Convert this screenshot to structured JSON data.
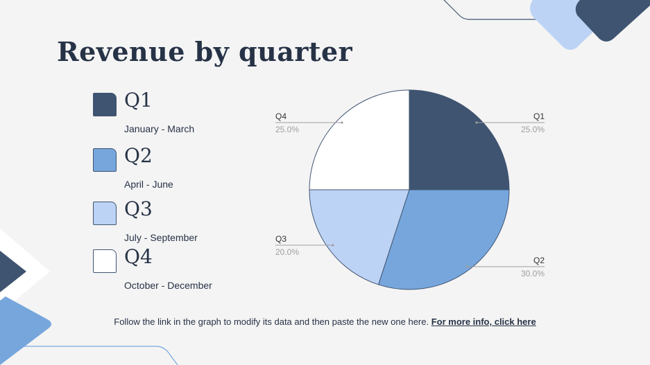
{
  "title": "Revenue by quarter",
  "legend": [
    {
      "label": "Q1",
      "range": "January - March",
      "color": "#3f5470"
    },
    {
      "label": "Q2",
      "range": "April - June",
      "color": "#76a6dc"
    },
    {
      "label": "Q3",
      "range": "July - September",
      "color": "#bdd3f5"
    },
    {
      "label": "Q4",
      "range": "October - December",
      "color": "#ffffff"
    }
  ],
  "chart_data": {
    "type": "pie",
    "categories": [
      "Q1",
      "Q2",
      "Q3",
      "Q4"
    ],
    "values": [
      25.0,
      30.0,
      20.0,
      25.0
    ],
    "value_labels": [
      "25.0%",
      "30.0%",
      "20.0%",
      "25.0%"
    ],
    "colors": [
      "#3f5470",
      "#76a6dc",
      "#bdd3f5",
      "#ffffff"
    ]
  },
  "footer": {
    "text": "Follow the link in the graph to modify its data and then paste the new one here. ",
    "link": "For more info, click here"
  },
  "colors": {
    "dark": "#3f5470",
    "mid": "#76a6dc",
    "light": "#bdd3f5",
    "text": "#263246",
    "background": "#f4f4f4"
  }
}
